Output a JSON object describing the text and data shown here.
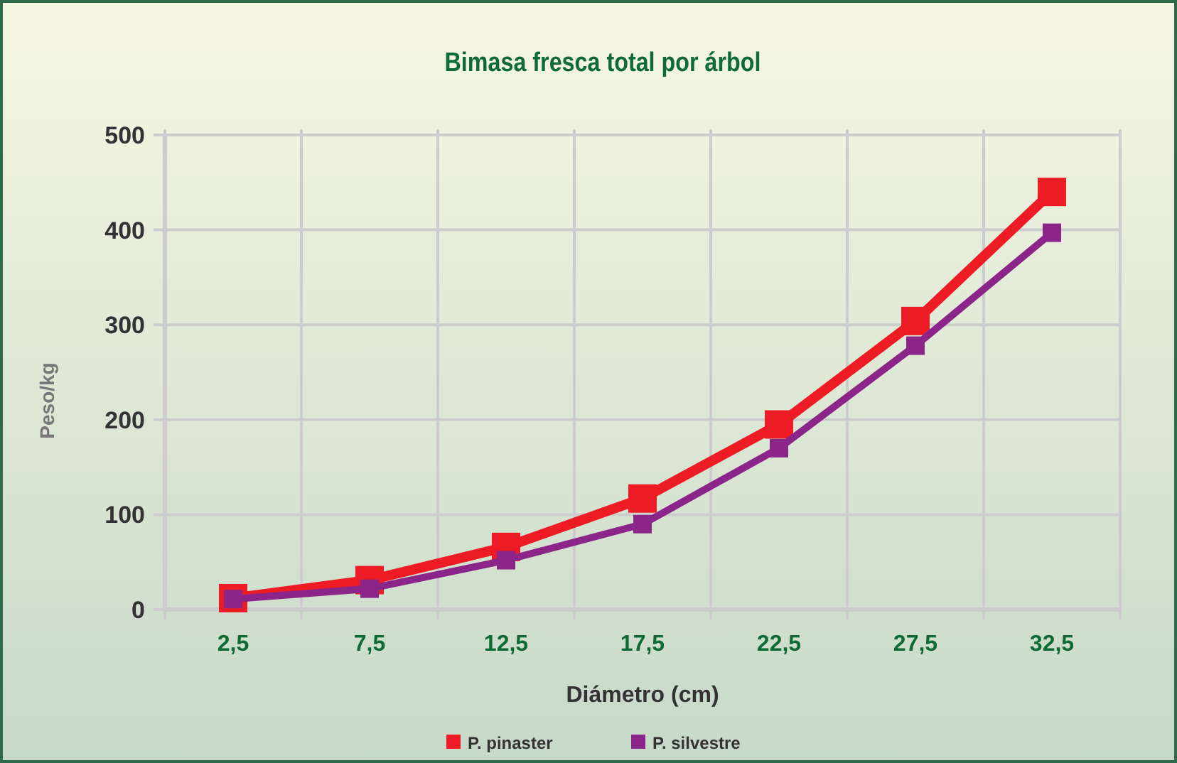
{
  "chart_data": {
    "type": "line",
    "title": "Bimasa fresca total por árbol",
    "xlabel": "Diámetro (cm)",
    "ylabel": "Peso/kg",
    "categories": [
      "2,5",
      "7,5",
      "12,5",
      "17,5",
      "22,5",
      "27,5",
      "32,5"
    ],
    "series": [
      {
        "name": "P. pinaster",
        "color": "#ed1c24",
        "values": [
          12,
          31,
          66,
          117,
          195,
          304,
          440
        ]
      },
      {
        "name": "P. silvestre",
        "color": "#8b2589",
        "values": [
          11,
          22,
          52,
          90,
          170,
          278,
          397
        ]
      }
    ],
    "ylim": [
      0,
      500
    ],
    "yticks": [
      0,
      100,
      200,
      300,
      400,
      500
    ],
    "grid": true,
    "legend": "bottom",
    "marker": "square",
    "line_style": "solid"
  }
}
